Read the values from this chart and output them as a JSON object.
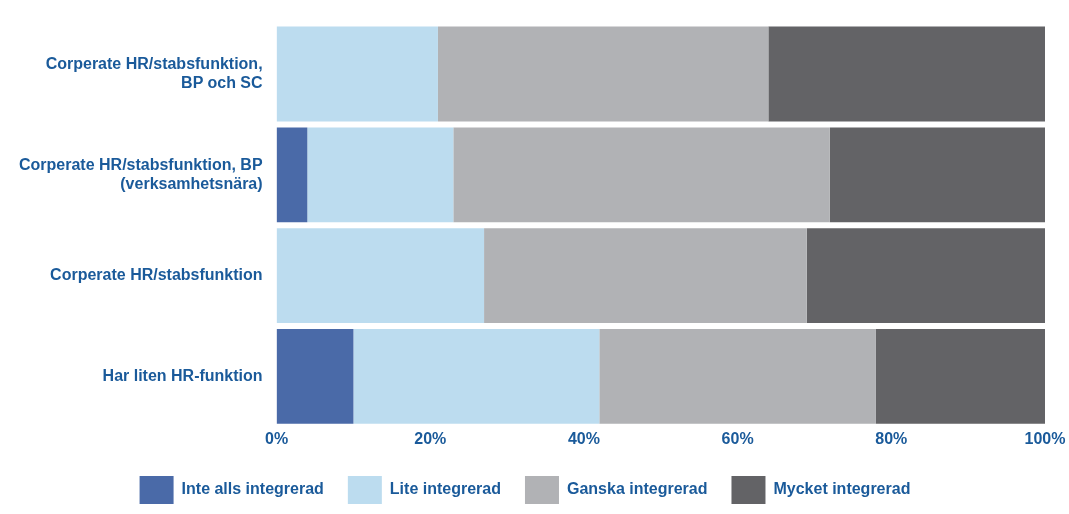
{
  "chart_data": {
    "type": "bar",
    "orientation": "horizontal",
    "stacked": true,
    "categories": [
      "Corperate HR/stabsfunktion,\nBP och SC",
      "Corperate HR/stabsfunktion, BP\n(verksamhetsnära)",
      "Corperate HR/stabsfunktion",
      "Har liten HR-funktion"
    ],
    "series": [
      {
        "name": "Inte alls integrerad",
        "color": "#4a6aa8",
        "values": [
          0,
          4,
          0,
          10
        ]
      },
      {
        "name": "Lite integrerad",
        "color": "#bcdcef",
        "values": [
          21,
          19,
          27,
          32
        ]
      },
      {
        "name": "Ganska integrerad",
        "color": "#b1b2b5",
        "values": [
          43,
          49,
          42,
          36
        ]
      },
      {
        "name": "Mycket integrerad",
        "color": "#636366",
        "values": [
          36,
          28,
          31,
          22
        ]
      }
    ],
    "xlim": [
      0,
      100
    ],
    "xticks": [
      {
        "value": 0,
        "label": "0%"
      },
      {
        "value": 20,
        "label": "20%"
      },
      {
        "value": 40,
        "label": "40%"
      },
      {
        "value": 60,
        "label": "60%"
      },
      {
        "value": 80,
        "label": "80%"
      },
      {
        "value": 100,
        "label": "100%"
      }
    ],
    "legend": "bottom",
    "grid": false
  }
}
